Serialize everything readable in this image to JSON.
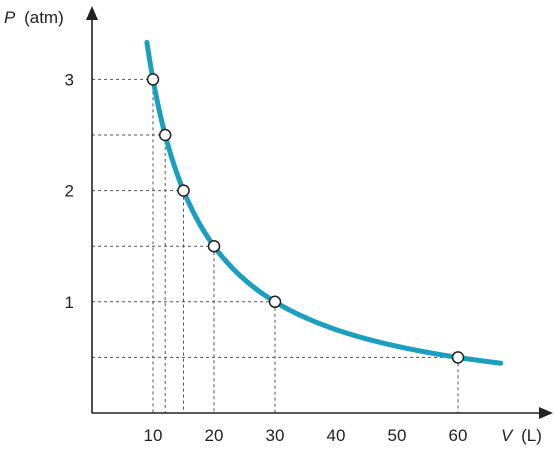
{
  "chart_data": {
    "type": "line",
    "xlabel": {
      "symbol": "V",
      "unit": "(L)"
    },
    "ylabel": {
      "symbol": "P",
      "unit": "(atm)"
    },
    "xlim": [
      0,
      68
    ],
    "ylim": [
      0,
      3.5
    ],
    "x_ticks": [
      10,
      20,
      30,
      40,
      50,
      60
    ],
    "y_ticks": [
      1,
      2,
      3
    ],
    "x_tick_labels": [
      "10",
      "20",
      "30",
      "40",
      "50",
      "60"
    ],
    "y_tick_labels": [
      "1",
      "2",
      "3"
    ],
    "grid": false,
    "series": [
      {
        "curve": "P*V = 30 (hyperbola)",
        "x_range": [
          9.0,
          67.0
        ],
        "points": [
          {
            "x": 10,
            "y": 3.0
          },
          {
            "x": 12,
            "y": 2.5
          },
          {
            "x": 15,
            "y": 2.0
          },
          {
            "x": 20,
            "y": 1.5
          },
          {
            "x": 30,
            "y": 1.0
          },
          {
            "x": 60,
            "y": 0.5
          }
        ]
      }
    ],
    "colors": {
      "curve": "#1a9fc0",
      "axis": "#222222",
      "marker_fill": "#ffffff"
    }
  }
}
